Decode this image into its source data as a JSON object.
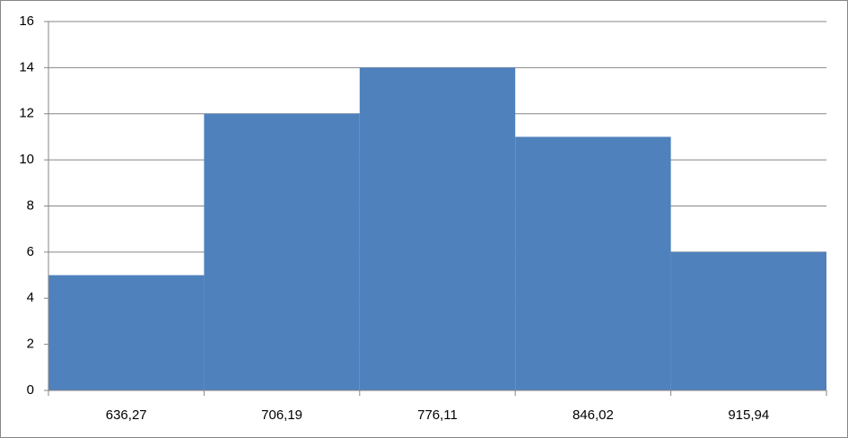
{
  "chart_data": {
    "type": "bar",
    "categories": [
      "636,27",
      "706,19",
      "776,11",
      "846,02",
      "915,94"
    ],
    "values": [
      5,
      12,
      14,
      11,
      6
    ],
    "color": "#4f81bd",
    "ylim": [
      0,
      16
    ],
    "yticks": [
      0,
      2,
      4,
      6,
      8,
      10,
      12,
      14,
      16
    ],
    "grid": true
  }
}
